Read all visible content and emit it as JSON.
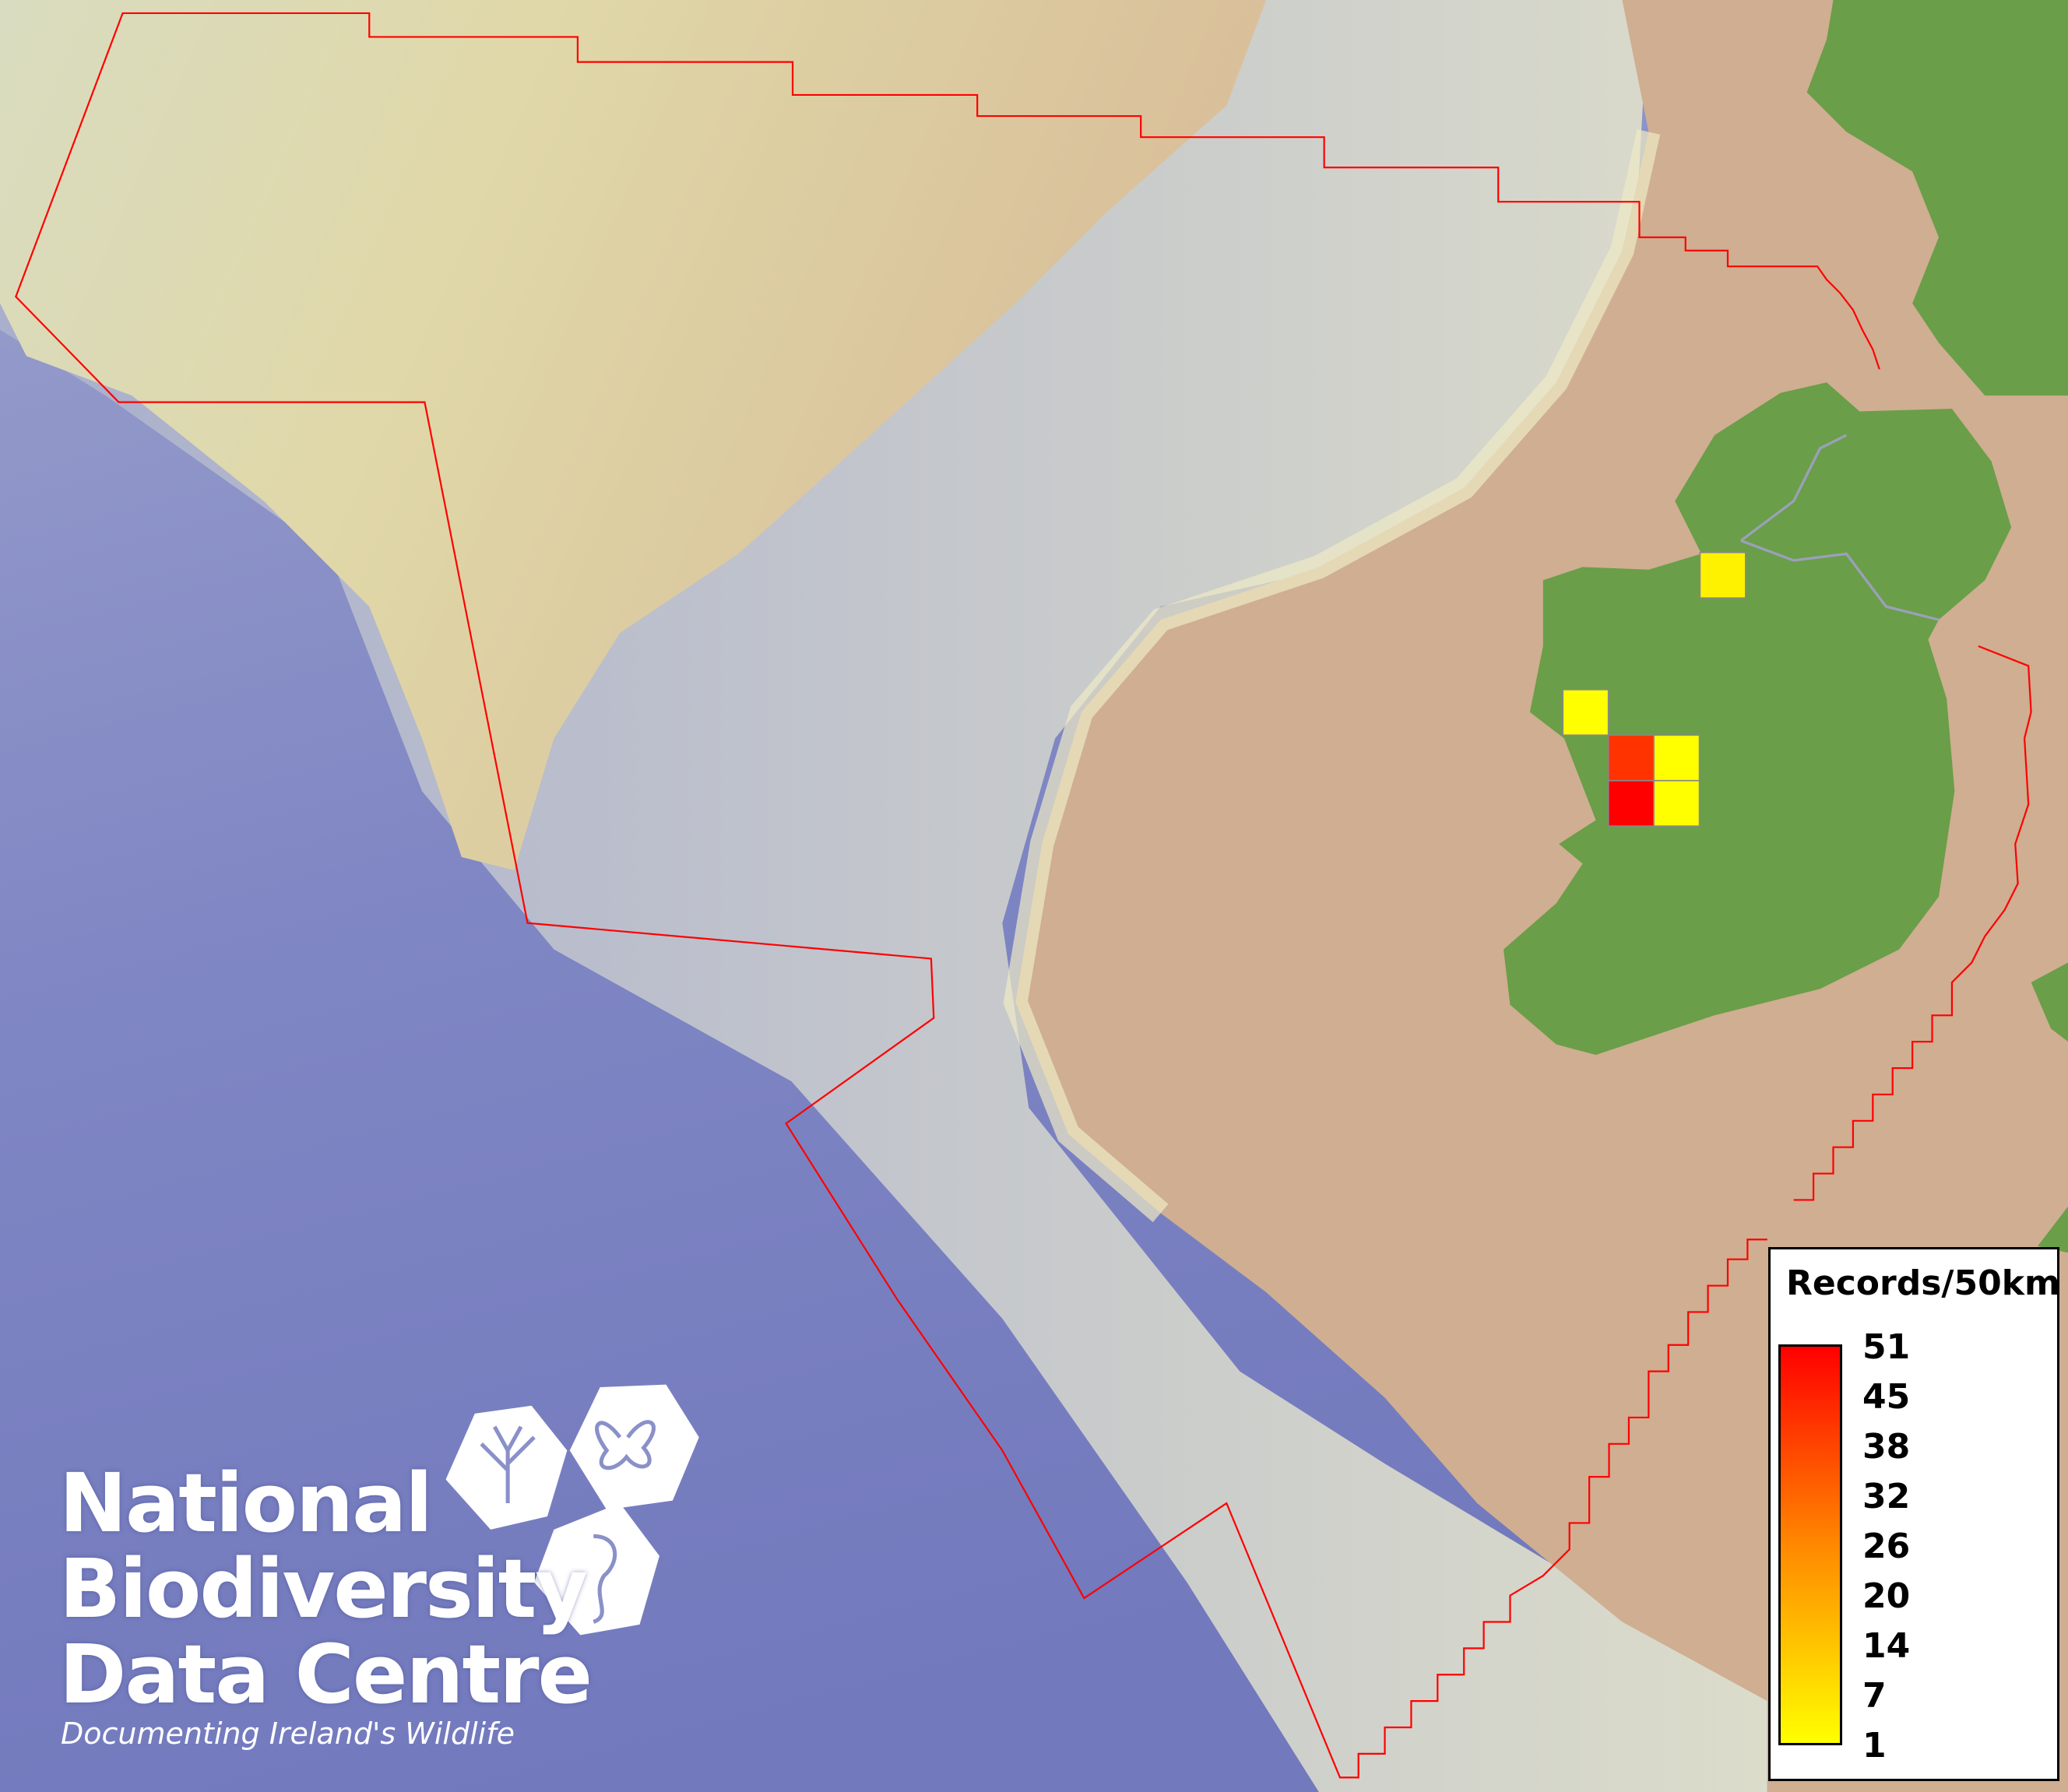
{
  "map": {
    "colors": {
      "ocean_deep": "#7c84c2",
      "slope": "#c9cbc9",
      "shelf_upper": "#dcd6a8",
      "shelf": "#cfae92",
      "land": "#6a9e48",
      "boundary": "#ff0000",
      "river": "#9aa0b8"
    },
    "grid_squares": [
      {
        "label": "sq-north",
        "records_level": "low",
        "color": "#fff200"
      },
      {
        "label": "sq-west",
        "records_level": "low",
        "color": "#ffff00"
      },
      {
        "label": "sq-centre-nw",
        "records_level": "high",
        "color": "#ff3300"
      },
      {
        "label": "sq-centre-ne",
        "records_level": "low",
        "color": "#ffff00"
      },
      {
        "label": "sq-centre-sw",
        "records_level": "max",
        "color": "#ff0000"
      },
      {
        "label": "sq-centre-se",
        "records_level": "low",
        "color": "#ffff00"
      }
    ]
  },
  "legend": {
    "title": "Records/50km",
    "labels": [
      "51",
      "45",
      "38",
      "32",
      "26",
      "20",
      "14",
      "7",
      "1"
    ],
    "gradient_top": "#ff0000",
    "gradient_mid": "#ff8800",
    "gradient_bottom": "#ffff00"
  },
  "logo": {
    "line1": "National",
    "line2": "Biodiversity",
    "line3": "Data Centre",
    "tagline": "Documenting Ireland's Wildlife"
  }
}
